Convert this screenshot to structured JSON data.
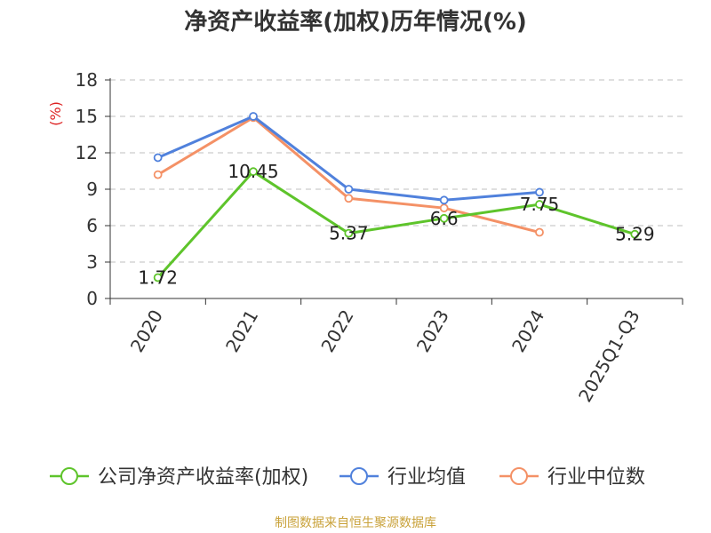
{
  "chart_data": {
    "type": "line",
    "title": "净资产收益率(加权)历年情况(%)",
    "ylabel": "(%)",
    "xlabel": "",
    "categories": [
      "2020",
      "2021",
      "2022",
      "2023",
      "2024",
      "2025Q1-Q3"
    ],
    "ylim": [
      0,
      18
    ],
    "yticks": [
      0,
      3,
      6,
      9,
      12,
      15,
      18
    ],
    "grid": true,
    "legend_position": "bottom",
    "series": [
      {
        "name": "公司净资产收益率(加权)",
        "color": "#5ec42b",
        "values": [
          1.72,
          10.45,
          5.37,
          6.6,
          7.75,
          5.29
        ],
        "labels": [
          "1.72",
          "10.45",
          "5.37",
          "6.6",
          "7.75",
          "5.29"
        ]
      },
      {
        "name": "行业均值",
        "color": "#5081dc",
        "values": [
          11.6,
          15.0,
          9.0,
          8.1,
          8.75,
          null
        ]
      },
      {
        "name": "行业中位数",
        "color": "#f49166",
        "values": [
          10.2,
          14.9,
          8.25,
          7.45,
          5.45,
          null
        ]
      }
    ]
  },
  "source": "制图数据来自恒生聚源数据库"
}
